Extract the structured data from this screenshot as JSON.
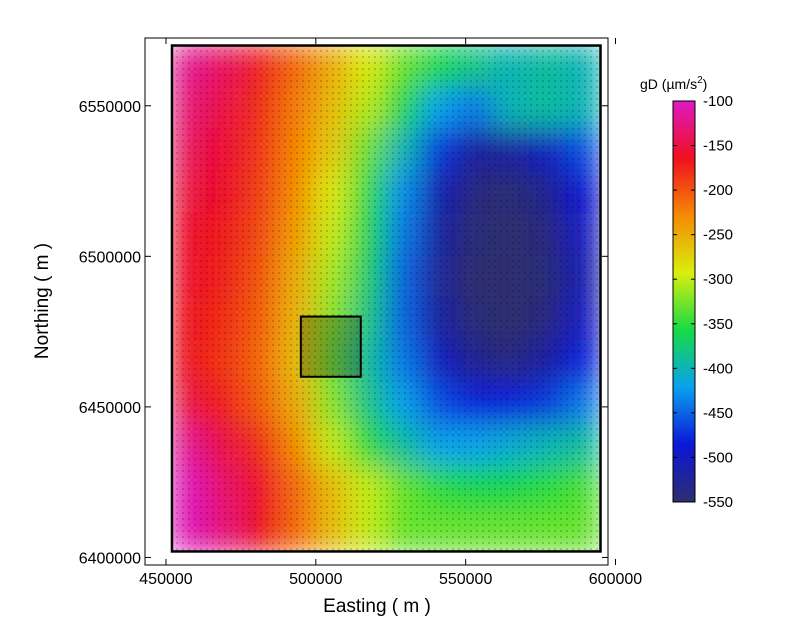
{
  "chart_data": {
    "type": "heatmap",
    "xlabel": "Easting ( m )",
    "ylabel": "Northing ( m )",
    "xlim": [
      443000,
      597500
    ],
    "ylim": [
      6397500,
      6572500
    ],
    "xticks": [
      450000,
      500000,
      550000,
      600000
    ],
    "yticks": [
      6400000,
      6450000,
      6500000,
      6550000
    ],
    "xtick_labels": [
      "450000",
      "500000",
      "550000",
      "600000"
    ],
    "ytick_labels": [
      "6400000",
      "6450000",
      "6500000",
      "6550000"
    ],
    "colorbar": {
      "title": "gD (µm/s²)",
      "title_main": "gD (",
      "title_unit": "µm/s",
      "title_sup": "2",
      "title_close": ")",
      "range": [
        -550,
        -100
      ],
      "ticks": [
        -100,
        -150,
        -200,
        -250,
        -300,
        -350,
        -400,
        -450,
        -500,
        -550
      ],
      "tick_labels": [
        "-100",
        "-150",
        "-200",
        "-250",
        "-300",
        "-350",
        "-400",
        "-450",
        "-500",
        "-550"
      ],
      "colors": [
        "#2e2f6e",
        "#0b16d9",
        "#0aa0ef",
        "#16db45",
        "#d9ee0d",
        "#f58a05",
        "#f0101e",
        "#df18c4"
      ]
    },
    "survey_area": {
      "x": [
        452000,
        595000
      ],
      "y": [
        6402000,
        6570000
      ]
    },
    "inset_box": {
      "x": [
        495000,
        515000
      ],
      "y": [
        6460000,
        6480000
      ]
    },
    "field_grid_z": [
      [
        -120,
        -140,
        -175,
        -210,
        -250,
        -290,
        -330,
        -360,
        -380,
        -400,
        -390,
        -400
      ],
      [
        -130,
        -150,
        -180,
        -220,
        -260,
        -305,
        -360,
        -420,
        -440,
        -400,
        -390,
        -400
      ],
      [
        -140,
        -155,
        -185,
        -225,
        -270,
        -330,
        -400,
        -470,
        -520,
        -520,
        -500,
        -460
      ],
      [
        -150,
        -160,
        -190,
        -230,
        -290,
        -350,
        -430,
        -510,
        -540,
        -545,
        -530,
        -490
      ],
      [
        -160,
        -170,
        -195,
        -240,
        -300,
        -360,
        -440,
        -520,
        -545,
        -548,
        -540,
        -500
      ],
      [
        -160,
        -175,
        -200,
        -250,
        -310,
        -370,
        -450,
        -525,
        -548,
        -548,
        -545,
        -510
      ],
      [
        -165,
        -180,
        -205,
        -255,
        -320,
        -380,
        -450,
        -520,
        -545,
        -548,
        -540,
        -500
      ],
      [
        -165,
        -185,
        -210,
        -260,
        -330,
        -390,
        -440,
        -500,
        -530,
        -540,
        -520,
        -480
      ],
      [
        -150,
        -175,
        -205,
        -250,
        -320,
        -380,
        -420,
        -460,
        -480,
        -480,
        -470,
        -440
      ],
      [
        -120,
        -150,
        -180,
        -230,
        -300,
        -350,
        -390,
        -420,
        -420,
        -410,
        -400,
        -390
      ],
      [
        -105,
        -135,
        -160,
        -210,
        -260,
        -300,
        -330,
        -350,
        -360,
        -360,
        -350,
        -340
      ],
      [
        -105,
        -130,
        -165,
        -210,
        -260,
        -300,
        -330,
        -330,
        -330,
        -330,
        -330,
        -330
      ]
    ]
  }
}
